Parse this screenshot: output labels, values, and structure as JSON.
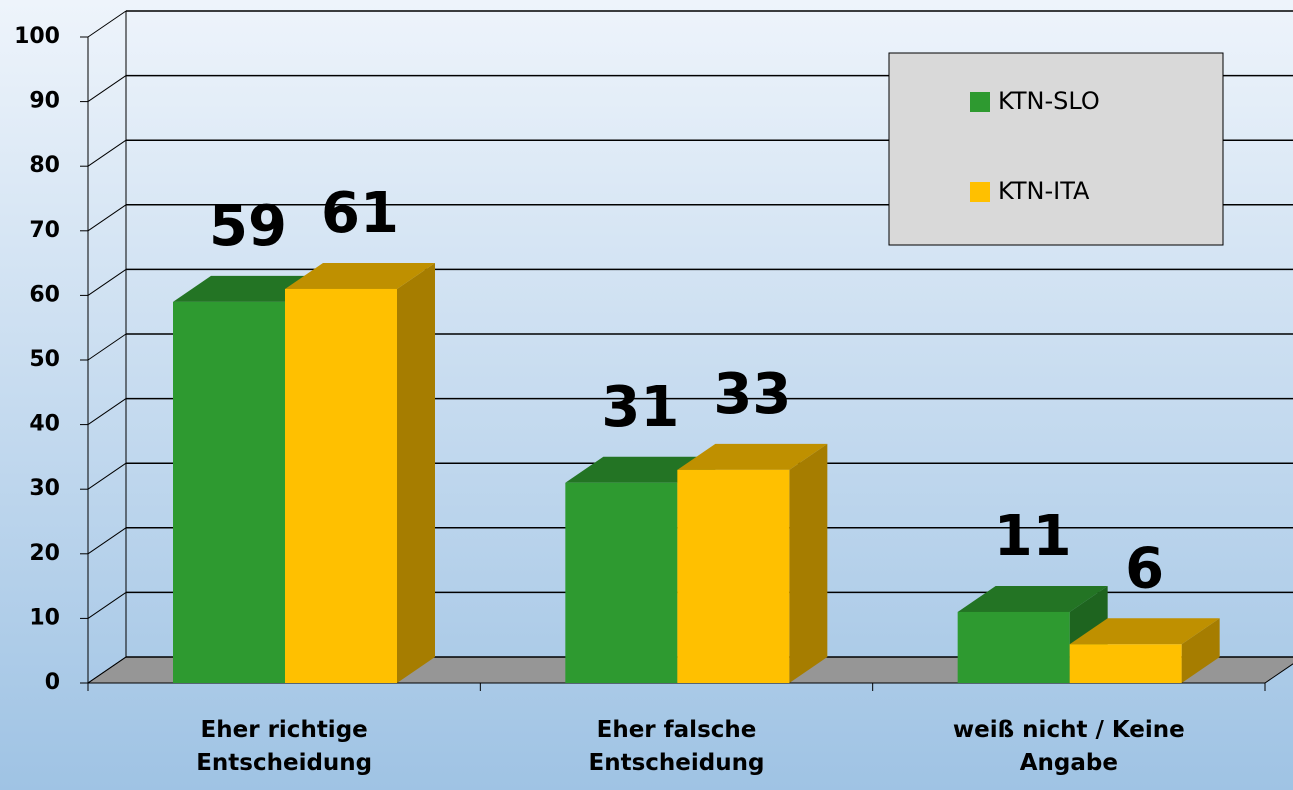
{
  "chart_data": {
    "type": "bar3d",
    "categories": [
      "Eher richtige Entscheidung",
      "Eher falsche Entscheidung",
      "weiß nicht / Keine Angabe"
    ],
    "series": [
      {
        "name": "KTN-SLO",
        "color": "#2e9a30",
        "values": [
          59,
          31,
          11
        ]
      },
      {
        "name": "KTN-ITA",
        "color": "#ffc000",
        "values": [
          61,
          33,
          6
        ]
      }
    ],
    "ylim": [
      0,
      100
    ],
    "yticks": [
      0,
      10,
      20,
      30,
      40,
      50,
      60,
      70,
      80,
      90,
      100
    ],
    "grid": true,
    "legend": "upper right"
  }
}
